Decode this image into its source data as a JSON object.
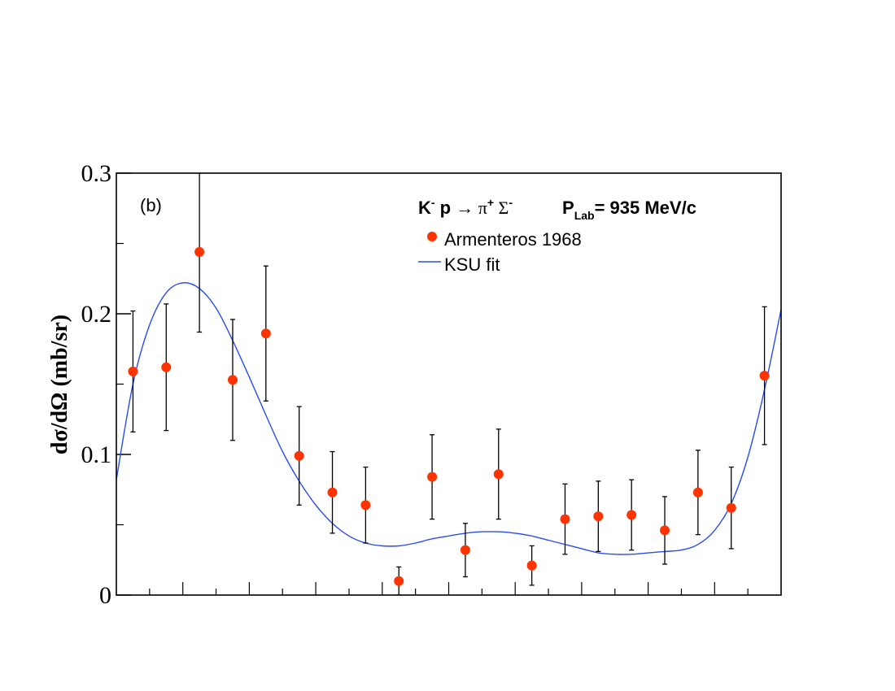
{
  "chart_data": {
    "type": "scatter",
    "panel_label": "(b)",
    "xlabel": "",
    "ylabel": "dσ/dΩ (mb/sr)",
    "xlim": [
      -1,
      1
    ],
    "ylim": [
      0,
      0.3
    ],
    "y_ticks": [
      {
        "value": 0,
        "label": "0"
      },
      {
        "value": 0.1,
        "label": "0.1"
      },
      {
        "value": 0.2,
        "label": "0.2"
      },
      {
        "value": 0.3,
        "label": "0.3"
      }
    ],
    "y_minor_ticks": [
      0.05,
      0.15,
      0.25
    ],
    "x_ticks": [
      -0.8,
      -0.6,
      -0.4,
      -0.2,
      0.0,
      0.2,
      0.4,
      0.6,
      0.8
    ],
    "x_minor_ticks": [
      -0.9,
      -0.7,
      -0.5,
      -0.3,
      -0.1,
      0.1,
      0.3,
      0.5,
      0.7,
      0.9
    ],
    "legend": {
      "reaction": {
        "k": "K",
        "k_sup": "-",
        "p": " p ",
        "arrow": "→",
        "pi": " π",
        "pi_sup": "+",
        "sigma": " Σ",
        "sigma_sup": "-"
      },
      "plab": {
        "label": "P",
        "sub": "Lab",
        "value": "=  935 MeV/c"
      },
      "entries": [
        "Armenteros 1968",
        "KSU fit"
      ],
      "placement": "top-right"
    },
    "colors": {
      "data": "#ff3300",
      "fit": "#2a4cf0",
      "errorbar": "#000000",
      "axis": "#000000"
    },
    "series": [
      {
        "name": "Armenteros 1968",
        "kind": "points",
        "points": [
          {
            "x": -0.95,
            "y": 0.159,
            "lo": 0.116,
            "hi": 0.202
          },
          {
            "x": -0.85,
            "y": 0.162,
            "lo": 0.117,
            "hi": 0.207
          },
          {
            "x": -0.75,
            "y": 0.244,
            "lo": 0.187,
            "hi": 0.3
          },
          {
            "x": -0.65,
            "y": 0.153,
            "lo": 0.11,
            "hi": 0.196
          },
          {
            "x": -0.55,
            "y": 0.186,
            "lo": 0.138,
            "hi": 0.234
          },
          {
            "x": -0.45,
            "y": 0.099,
            "lo": 0.064,
            "hi": 0.134
          },
          {
            "x": -0.35,
            "y": 0.073,
            "lo": 0.044,
            "hi": 0.102
          },
          {
            "x": -0.25,
            "y": 0.064,
            "lo": 0.037,
            "hi": 0.091
          },
          {
            "x": -0.15,
            "y": 0.01,
            "lo": 0.0,
            "hi": 0.02
          },
          {
            "x": -0.05,
            "y": 0.084,
            "lo": 0.054,
            "hi": 0.114
          },
          {
            "x": 0.05,
            "y": 0.032,
            "lo": 0.013,
            "hi": 0.051
          },
          {
            "x": 0.15,
            "y": 0.086,
            "lo": 0.054,
            "hi": 0.118
          },
          {
            "x": 0.25,
            "y": 0.021,
            "lo": 0.007,
            "hi": 0.035
          },
          {
            "x": 0.35,
            "y": 0.054,
            "lo": 0.029,
            "hi": 0.079
          },
          {
            "x": 0.45,
            "y": 0.056,
            "lo": 0.031,
            "hi": 0.081
          },
          {
            "x": 0.55,
            "y": 0.057,
            "lo": 0.032,
            "hi": 0.082
          },
          {
            "x": 0.65,
            "y": 0.046,
            "lo": 0.022,
            "hi": 0.07
          },
          {
            "x": 0.75,
            "y": 0.073,
            "lo": 0.043,
            "hi": 0.103
          },
          {
            "x": 0.85,
            "y": 0.062,
            "lo": 0.033,
            "hi": 0.091
          },
          {
            "x": 0.95,
            "y": 0.156,
            "lo": 0.107,
            "hi": 0.205
          }
        ]
      },
      {
        "name": "KSU fit",
        "kind": "line",
        "x": [
          -1.0,
          -0.95,
          -0.9,
          -0.85,
          -0.8,
          -0.75,
          -0.7,
          -0.65,
          -0.6,
          -0.55,
          -0.5,
          -0.45,
          -0.4,
          -0.35,
          -0.3,
          -0.25,
          -0.2,
          -0.15,
          -0.1,
          -0.05,
          0.0,
          0.05,
          0.1,
          0.15,
          0.2,
          0.25,
          0.3,
          0.35,
          0.4,
          0.45,
          0.5,
          0.55,
          0.6,
          0.65,
          0.7,
          0.75,
          0.8,
          0.85,
          0.9,
          0.95,
          1.0
        ],
        "y": [
          0.082,
          0.15,
          0.192,
          0.215,
          0.222,
          0.218,
          0.204,
          0.181,
          0.155,
          0.128,
          0.102,
          0.081,
          0.064,
          0.051,
          0.042,
          0.037,
          0.035,
          0.035,
          0.037,
          0.04,
          0.042,
          0.044,
          0.045,
          0.045,
          0.044,
          0.042,
          0.039,
          0.036,
          0.033,
          0.03,
          0.029,
          0.029,
          0.03,
          0.031,
          0.032,
          0.036,
          0.046,
          0.065,
          0.098,
          0.146,
          0.203
        ]
      }
    ]
  }
}
